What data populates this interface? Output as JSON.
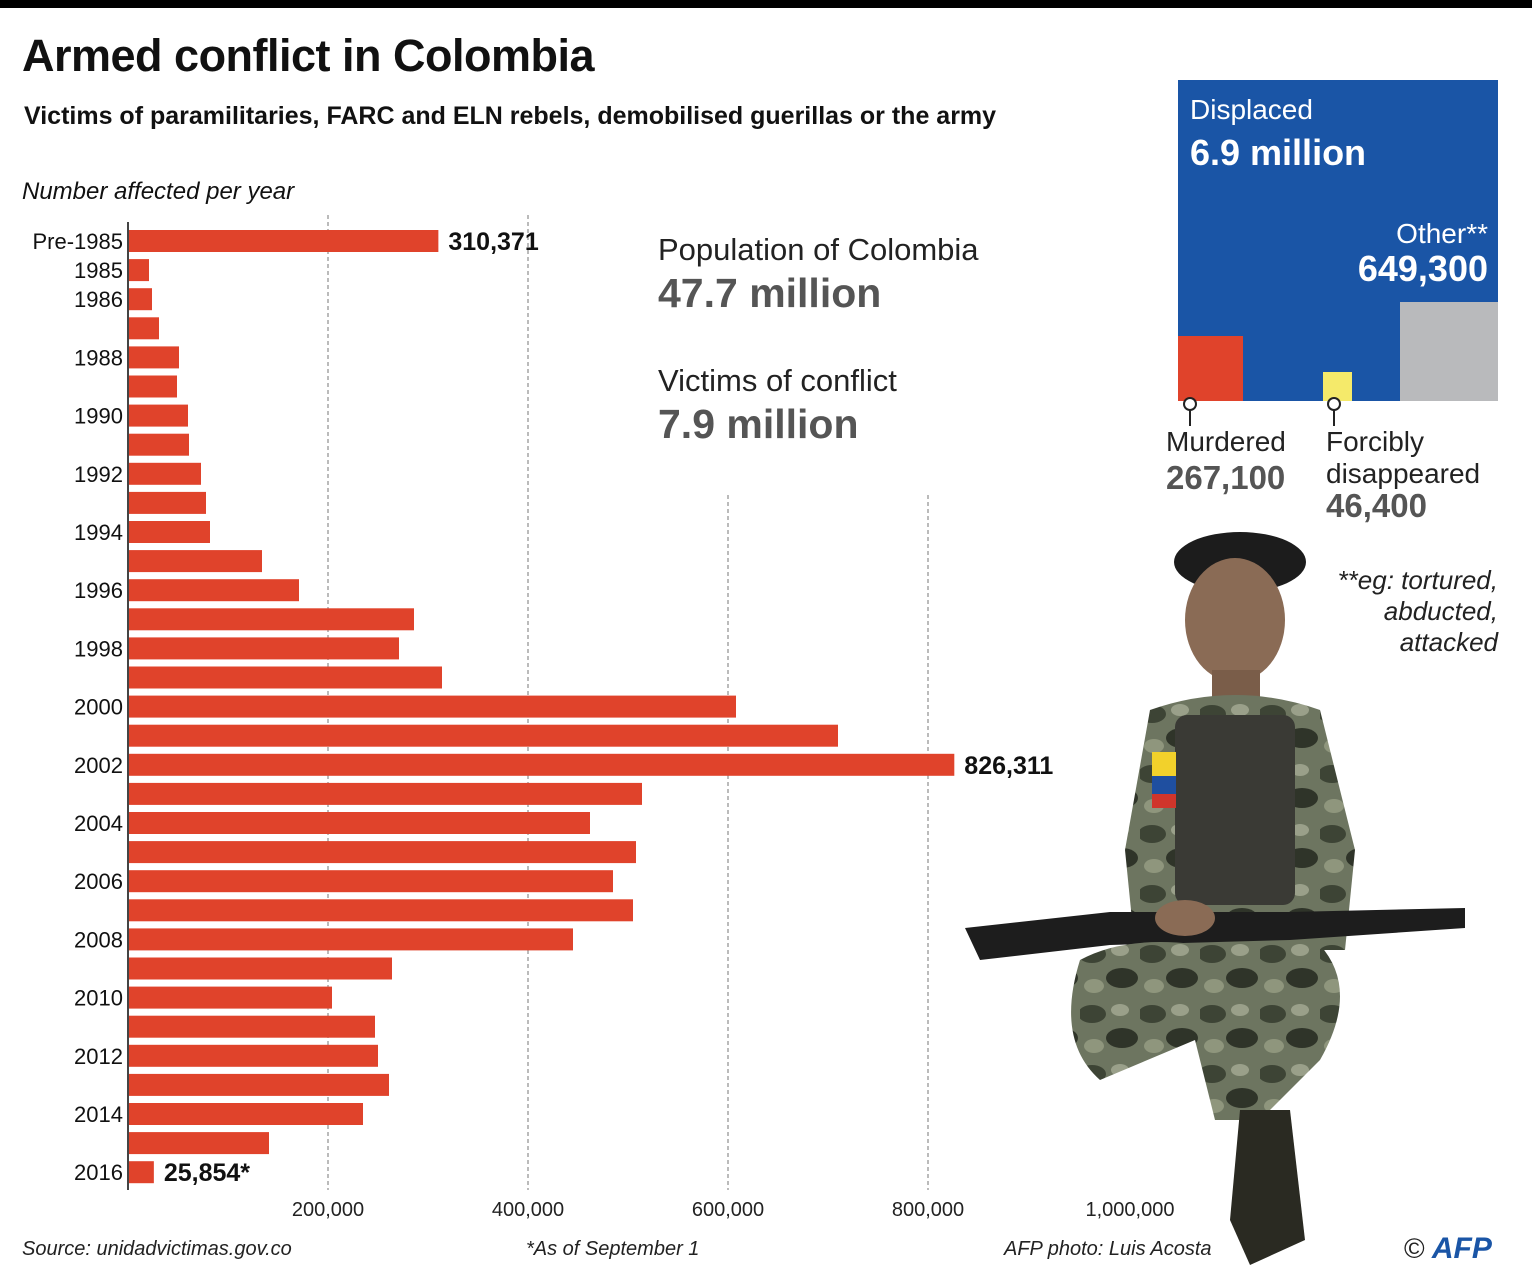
{
  "title": "Armed conflict in Colombia",
  "subtitle": "Victims of paramilitaries, FARC and ELN rebels, demobilised guerillas or the army",
  "axis_note": "Number affected per year",
  "population": {
    "pop_label": "Population of Colombia",
    "pop_value": "47.7 million",
    "victims_label": "Victims of conflict",
    "victims_value": "7.9 million"
  },
  "breakdown": {
    "displaced_label": "Displaced",
    "displaced_value": "6.9 million",
    "other_label": "Other**",
    "other_value": "649,300",
    "murdered_label": "Murdered",
    "murdered_value": "267,100",
    "disappeared_label_1": "Forcibly",
    "disappeared_label_2": "disappeared",
    "disappeared_value": "46,400",
    "footnote_1": "**eg: tortured,",
    "footnote_2": "abducted,",
    "footnote_3": "attacked",
    "colors": {
      "displaced": "#1a55a6",
      "murdered": "#e0432b",
      "disappeared": "#f5ea6a",
      "other": "#b9babc"
    }
  },
  "footer": {
    "source": "Source: unidadvictimas.gov.co",
    "note": "*As of September 1",
    "photo_credit": "AFP photo: Luis Acosta",
    "copyright": "©",
    "agency": "AFP"
  },
  "chart_data": {
    "type": "bar",
    "orientation": "horizontal",
    "title": "Number affected per year",
    "categories": [
      "Pre-1985",
      "1985",
      "1986",
      "1987",
      "1988",
      "1989",
      "1990",
      "1991",
      "1992",
      "1993",
      "1994",
      "1995",
      "1996",
      "1997",
      "1998",
      "1999",
      "2000",
      "2001",
      "2002",
      "2003",
      "2004",
      "2005",
      "2006",
      "2007",
      "2008",
      "2009",
      "2010",
      "2011",
      "2012",
      "2013",
      "2014",
      "2015",
      "2016"
    ],
    "visible_category_labels": [
      "Pre-1985",
      "1985",
      "1986",
      "",
      "1988",
      "",
      "1990",
      "",
      "1992",
      "",
      "1994",
      "",
      "1996",
      "",
      "1998",
      "",
      "2000",
      "",
      "2002",
      "",
      "2004",
      "",
      "2006",
      "",
      "2008",
      "",
      "2010",
      "",
      "2012",
      "",
      "2014",
      "",
      "2016"
    ],
    "values": [
      310371,
      21000,
      24000,
      31000,
      51000,
      49000,
      60000,
      61000,
      73000,
      78000,
      82000,
      134000,
      171000,
      286000,
      271000,
      314000,
      608000,
      710000,
      826311,
      514000,
      462000,
      508000,
      485000,
      505000,
      445000,
      264000,
      204000,
      247000,
      250000,
      261000,
      235000,
      141000,
      25854
    ],
    "data_labels": {
      "0": "310,371",
      "18": "826,311",
      "32": "25,854*"
    },
    "xlim": [
      0,
      1000000
    ],
    "x_ticks": [
      200000,
      400000,
      600000,
      800000,
      1000000
    ],
    "x_tick_labels": [
      "200,000",
      "400,000",
      "600,000",
      "800,000",
      "1,000,000"
    ],
    "grid": "vertical dashed",
    "bar_color": "#e0432b"
  }
}
